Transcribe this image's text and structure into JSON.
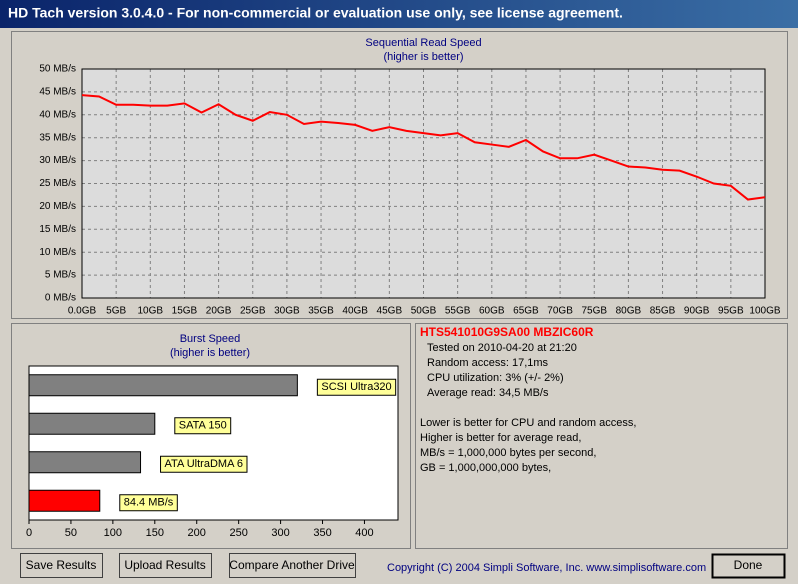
{
  "window": {
    "title": "HD Tach version 3.0.4.0  - For non-commercial or evaluation use only, see license agreement."
  },
  "chart_data": [
    {
      "type": "line",
      "title": "Sequential Read Speed",
      "subtitle": "(higher is better)",
      "x": [
        0,
        2.5,
        5,
        7.5,
        10,
        12.5,
        15,
        17.5,
        20,
        22.5,
        25,
        27.5,
        30,
        32.5,
        35,
        37.5,
        40,
        42.5,
        45,
        47.5,
        50,
        52.5,
        55,
        57.5,
        60,
        62.5,
        65,
        67.5,
        70,
        72.5,
        75,
        77.5,
        80,
        82.5,
        85,
        87.5,
        90,
        92.5,
        95,
        97.5,
        100
      ],
      "series": [
        {
          "name": null,
          "color": "#ff0000",
          "values": [
            44.3,
            44,
            42.2,
            42.2,
            42,
            42,
            42.5,
            40.5,
            42.3,
            40,
            38.7,
            40.6,
            40,
            38,
            38.5,
            38.2,
            37.8,
            36.5,
            37.3,
            36.5,
            36,
            35.5,
            36,
            34,
            33.5,
            33,
            34.5,
            32,
            30.5,
            30.5,
            31.3,
            30,
            28.7,
            28.5,
            28,
            27.8,
            26.5,
            25,
            24.5,
            21.5,
            22
          ]
        }
      ],
      "xlim": [
        0,
        100
      ],
      "xticks": [
        {
          "value": 0,
          "label": "0.0GB"
        },
        {
          "value": 5,
          "label": "5GB"
        },
        {
          "value": 10,
          "label": "10GB"
        },
        {
          "value": 15,
          "label": "15GB"
        },
        {
          "value": 20,
          "label": "20GB"
        },
        {
          "value": 25,
          "label": "25GB"
        },
        {
          "value": 30,
          "label": "30GB"
        },
        {
          "value": 35,
          "label": "35GB"
        },
        {
          "value": 40,
          "label": "40GB"
        },
        {
          "value": 45,
          "label": "45GB"
        },
        {
          "value": 50,
          "label": "50GB"
        },
        {
          "value": 55,
          "label": "55GB"
        },
        {
          "value": 60,
          "label": "60GB"
        },
        {
          "value": 65,
          "label": "65GB"
        },
        {
          "value": 70,
          "label": "70GB"
        },
        {
          "value": 75,
          "label": "75GB"
        },
        {
          "value": 80,
          "label": "80GB"
        },
        {
          "value": 85,
          "label": "85GB"
        },
        {
          "value": 90,
          "label": "90GB"
        },
        {
          "value": 95,
          "label": "95GB"
        },
        {
          "value": 100,
          "label": "100GB"
        }
      ],
      "ylim": [
        0,
        50
      ],
      "yticks": [
        {
          "value": 0,
          "label": "0 MB/s"
        },
        {
          "value": 5,
          "label": "5 MB/s"
        },
        {
          "value": 10,
          "label": "10 MB/s"
        },
        {
          "value": 15,
          "label": "15 MB/s"
        },
        {
          "value": 20,
          "label": "20 MB/s"
        },
        {
          "value": 25,
          "label": "25 MB/s"
        },
        {
          "value": 30,
          "label": "30 MB/s"
        },
        {
          "value": 35,
          "label": "35 MB/s"
        },
        {
          "value": 40,
          "label": "40 MB/s"
        },
        {
          "value": 45,
          "label": "45 MB/s"
        },
        {
          "value": 50,
          "label": "50 MB/s"
        }
      ],
      "grid": true
    },
    {
      "type": "hbar",
      "title": "Burst Speed",
      "subtitle": "(higher is better)",
      "categories": [
        "SCSI Ultra320",
        "SATA 150",
        "ATA UltraDMA 6",
        null
      ],
      "values": [
        320,
        150,
        133,
        84.4
      ],
      "value_labels": [
        null,
        null,
        null,
        "84.4 MB/s"
      ],
      "colors": [
        "#808080",
        "#808080",
        "#808080",
        "#ff0000"
      ],
      "xlim": [
        0,
        440
      ],
      "xticks": [
        0,
        50,
        100,
        150,
        200,
        250,
        300,
        350,
        400
      ]
    }
  ],
  "info": {
    "model": "HTS541010G9SA00 MBZIC60R",
    "details": [
      "Tested on 2010-04-20 at 21:20",
      "Random access: 17,1ms",
      "CPU utilization: 3% (+/- 2%)",
      "Average read: 34,5 MB/s"
    ],
    "notes": [
      "Lower is better for CPU and random access,",
      "Higher is better for average read,",
      "MB/s = 1,000,000 bytes per second,",
      "GB = 1,000,000,000 bytes,"
    ]
  },
  "buttons": [
    "Save Results",
    "Upload Results",
    "Compare Another Drive"
  ],
  "done": "Done",
  "copyright": "Copyright (C) 2004 Simpli Software, Inc. www.simplisoftware.com"
}
